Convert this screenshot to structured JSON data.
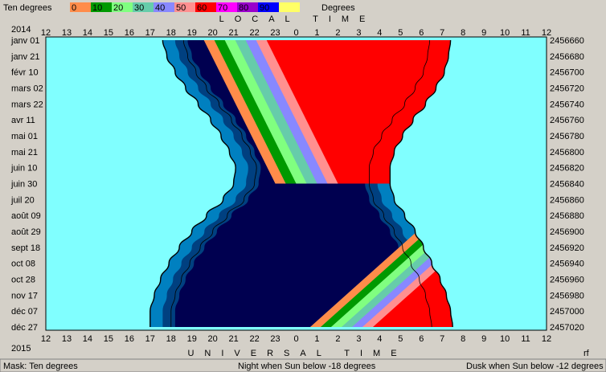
{
  "legend": {
    "title": "Ten degrees",
    "unit": "Degrees",
    "items": [
      {
        "label": "0",
        "color": "#ff8c4a"
      },
      {
        "label": "10",
        "color": "#009900"
      },
      {
        "label": "20",
        "color": "#80ff80"
      },
      {
        "label": "30",
        "color": "#66ccaa"
      },
      {
        "label": "40",
        "color": "#8888ff"
      },
      {
        "label": "50",
        "color": "#ff9090"
      },
      {
        "label": "60",
        "color": "#ff0000"
      },
      {
        "label": "70",
        "color": "#ff00ff"
      },
      {
        "label": "80",
        "color": "#9900cc"
      },
      {
        "label": "90",
        "color": "#0000ff"
      },
      {
        "label": "",
        "color": "#ffff66"
      }
    ]
  },
  "header": {
    "year_start": "2014",
    "year_end": "2015",
    "local_time_label": "LOCAL TIME",
    "universal_time_label": "UNIVERSAL TIME",
    "corner_mark": "rf"
  },
  "status_bar": {
    "mask": "Mask:  Ten degrees",
    "night": "Night when Sun below -18 degrees",
    "dusk": "Dusk when Sun below -12 degrees"
  },
  "chart_data": {
    "type": "heatmap",
    "x_ticks_local": [
      "12",
      "13",
      "14",
      "15",
      "16",
      "17",
      "18",
      "19",
      "20",
      "21",
      "22",
      "23",
      "0",
      "1",
      "2",
      "3",
      "4",
      "5",
      "6",
      "7",
      "8",
      "9",
      "10",
      "11",
      "12"
    ],
    "x_ticks_ut": [
      "12",
      "13",
      "14",
      "15",
      "16",
      "17",
      "18",
      "19",
      "20",
      "21",
      "22",
      "23",
      "0",
      "1",
      "2",
      "3",
      "4",
      "5",
      "6",
      "7",
      "8",
      "9",
      "10",
      "11",
      "12"
    ],
    "y_dates": [
      "janv 01",
      "janv 21",
      "févr 10",
      "mars 02",
      "mars 22",
      "avr 11",
      "mai 01",
      "mai 21",
      "juin 10",
      "juin 30",
      "juil 20",
      "août 09",
      "août 29",
      "sept 18",
      "oct 08",
      "oct 28",
      "nov 17",
      "déc 07",
      "déc 27"
    ],
    "y_julian": [
      "2456660",
      "2456680",
      "2456700",
      "2456720",
      "2456740",
      "2456760",
      "2456780",
      "2456800",
      "2456820",
      "2456840",
      "2456860",
      "2456880",
      "2456900",
      "2456920",
      "2456940",
      "2456960",
      "2456980",
      "2457000",
      "2457020"
    ],
    "colors": {
      "day": "#80ffff",
      "twilight_outer": "#0080c0",
      "twilight_inner": "#004080",
      "night": "#000050"
    },
    "bands": [
      {
        "label": "0",
        "color": "#ff8c4a"
      },
      {
        "label": "10",
        "color": "#009900"
      },
      {
        "label": "20",
        "color": "#80ff80"
      },
      {
        "label": "30",
        "color": "#66ccaa"
      },
      {
        "label": "40",
        "color": "#8888ff"
      },
      {
        "label": "50",
        "color": "#ff9090"
      },
      {
        "label": "60",
        "color": "#ff0000"
      }
    ],
    "sunset_hours": [
      17.6,
      17.8,
      18.2,
      18.7,
      19.3,
      19.9,
      20.4,
      20.8,
      21.1,
      21.0,
      20.5,
      19.7,
      19.0,
      18.4,
      17.9,
      17.5,
      17.2,
      17.0,
      17.0
    ],
    "sunrise_hours": [
      31.4,
      31.3,
      31.1,
      30.7,
      30.2,
      29.6,
      29.1,
      28.7,
      28.5,
      28.5,
      28.7,
      29.2,
      29.7,
      30.1,
      30.5,
      30.9,
      31.2,
      31.4,
      31.5
    ]
  }
}
